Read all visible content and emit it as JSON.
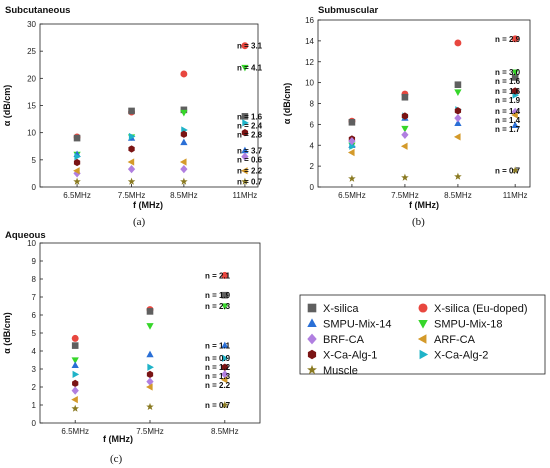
{
  "series_styles": [
    {
      "key": "xsilica",
      "name": "X-silica",
      "color": "#5f5f5f",
      "marker": "square"
    },
    {
      "key": "xsilica_eu",
      "name": "X-silica (Eu-doped)",
      "color": "#e8473f",
      "marker": "circle"
    },
    {
      "key": "smpu14",
      "name": "SMPU-Mix-14",
      "color": "#2a6fd6",
      "marker": "triangle-up"
    },
    {
      "key": "smpu18",
      "name": "SMPU-Mix-18",
      "color": "#36d62a",
      "marker": "triangle-down"
    },
    {
      "key": "brfca",
      "name": "BRF-CA",
      "color": "#b07fe0",
      "marker": "diamond"
    },
    {
      "key": "arfca",
      "name": "ARF-CA",
      "color": "#d49a2a",
      "marker": "triangle-left"
    },
    {
      "key": "xcaalg1",
      "name": "X-Ca-Alg-1",
      "color": "#7a1414",
      "marker": "hexagon"
    },
    {
      "key": "xcaalg2",
      "name": "X-Ca-Alg-2",
      "color": "#1fb3c8",
      "marker": "triangle-right"
    },
    {
      "key": "muscle",
      "name": "Muscle",
      "color": "#8a7a22",
      "marker": "star"
    }
  ],
  "chart_data": [
    {
      "id": "a",
      "type": "scatter",
      "title": "Subcutaneous",
      "xlabel": "f (MHz)",
      "ylabel": "α (dB/cm)",
      "caption": "(a)",
      "categories": [
        "6.5MHz",
        "7.5MHz",
        "8.5MHz",
        "11MHz"
      ],
      "ylim": [
        0,
        30
      ],
      "yticks": [
        0,
        5,
        10,
        15,
        20,
        25,
        30
      ],
      "series": [
        {
          "key": "xsilica_eu",
          "values": [
            9.2,
            13.8,
            20.8,
            26.0
          ]
        },
        {
          "key": "xsilica",
          "values": [
            9.0,
            14.0,
            14.2,
            13.0
          ]
        },
        {
          "key": "smpu18",
          "values": [
            6.0,
            9.2,
            13.7,
            22.0
          ]
        },
        {
          "key": "smpu14",
          "values": [
            6.0,
            9.0,
            8.2,
            6.7
          ]
        },
        {
          "key": "xcaalg2",
          "values": [
            5.6,
            9.3,
            10.5,
            11.8
          ]
        },
        {
          "key": "xcaalg1",
          "values": [
            4.5,
            7.0,
            9.7,
            10.0
          ]
        },
        {
          "key": "brfca",
          "values": [
            2.5,
            3.3,
            3.3,
            5.6
          ]
        },
        {
          "key": "arfca",
          "values": [
            3.0,
            4.6,
            4.6,
            3.0
          ]
        },
        {
          "key": "muscle",
          "values": [
            1.0,
            1.0,
            1.0,
            1.0
          ]
        }
      ],
      "n_labels": [
        {
          "text": "n = 3.1",
          "value": 26.0
        },
        {
          "text": "n = 4.1",
          "value": 22.0
        },
        {
          "text": "n = 1.6",
          "value": 13.0
        },
        {
          "text": "n = 2.4",
          "value": 11.8
        },
        {
          "text": "n = 2.8",
          "value": 10.0
        },
        {
          "text": "n = 3.7",
          "value": 6.7
        },
        {
          "text": "n = 0.6",
          "value": 5.6
        },
        {
          "text": "n = 2.2",
          "value": 3.0
        },
        {
          "text": "n = 0.7",
          "value": 1.0
        }
      ]
    },
    {
      "id": "b",
      "type": "scatter",
      "title": "Submuscular",
      "xlabel": "f (MHz)",
      "ylabel": "α (dB/cm)",
      "caption": "(b)",
      "categories": [
        "6.5MHz",
        "7.5MHz",
        "8.5MHz",
        "11MHz"
      ],
      "ylim": [
        0,
        16
      ],
      "yticks": [
        0,
        2,
        4,
        6,
        8,
        10,
        12,
        14,
        16
      ],
      "series": [
        {
          "key": "xsilica_eu",
          "values": [
            6.3,
            8.9,
            13.8,
            14.2
          ]
        },
        {
          "key": "xsilica",
          "values": [
            6.2,
            8.6,
            9.8,
            10.5
          ]
        },
        {
          "key": "smpu18",
          "values": [
            4.0,
            5.6,
            9.1,
            11.0
          ]
        },
        {
          "key": "smpu14",
          "values": [
            4.0,
            6.6,
            6.1,
            5.9
          ]
        },
        {
          "key": "xcaalg2",
          "values": [
            3.9,
            6.8,
            7.4,
            8.8
          ]
        },
        {
          "key": "xcaalg1",
          "values": [
            4.6,
            6.8,
            7.3,
            9.2
          ]
        },
        {
          "key": "brfca",
          "values": [
            4.4,
            5.0,
            6.6,
            7.2
          ]
        },
        {
          "key": "arfca",
          "values": [
            3.3,
            3.9,
            4.8,
            6.9
          ]
        },
        {
          "key": "muscle",
          "values": [
            0.8,
            0.9,
            1.0,
            1.6
          ]
        }
      ],
      "n_labels": [
        {
          "text": "n = 2.9",
          "value": 14.2
        },
        {
          "text": "n = 3.0",
          "value": 11.0
        },
        {
          "text": "n = 1.6",
          "value": 10.5
        },
        {
          "text": "n = 1.6",
          "value": 9.2
        },
        {
          "text": "n = 1.9",
          "value": 8.8
        },
        {
          "text": "n = 1.4",
          "value": 7.3
        },
        {
          "text": "n = 1.4",
          "value": 6.8
        },
        {
          "text": "n = 1.7",
          "value": 5.9
        },
        {
          "text": "n = 0.7",
          "value": 1.6
        }
      ]
    },
    {
      "id": "c",
      "type": "scatter",
      "title": "Aqueous",
      "xlabel": "f (MHz)",
      "ylabel": "α (dB/cm)",
      "caption": "(c)",
      "categories": [
        "6.5MHz",
        "7.5MHz",
        "8.5MHz"
      ],
      "ylim": [
        0,
        10
      ],
      "yticks": [
        0,
        1,
        2,
        3,
        4,
        5,
        6,
        7,
        8,
        9,
        10
      ],
      "series": [
        {
          "key": "xsilica_eu",
          "values": [
            4.7,
            6.3,
            8.2
          ]
        },
        {
          "key": "xsilica",
          "values": [
            4.3,
            6.2,
            7.1
          ]
        },
        {
          "key": "smpu18",
          "values": [
            3.5,
            5.4,
            6.5
          ]
        },
        {
          "key": "smpu14",
          "values": [
            3.2,
            3.8,
            4.3
          ]
        },
        {
          "key": "xcaalg2",
          "values": [
            2.7,
            3.1,
            3.6
          ]
        },
        {
          "key": "xcaalg1",
          "values": [
            2.2,
            2.7,
            3.1
          ]
        },
        {
          "key": "brfca",
          "values": [
            1.8,
            2.3,
            2.7
          ]
        },
        {
          "key": "arfca",
          "values": [
            1.3,
            2.0,
            2.4
          ]
        },
        {
          "key": "muscle",
          "values": [
            0.8,
            0.9,
            1.0
          ]
        }
      ],
      "n_labels": [
        {
          "text": "n = 2.1",
          "value": 8.2
        },
        {
          "text": "n = 1.9",
          "value": 7.1
        },
        {
          "text": "n = 2.3",
          "value": 6.5
        },
        {
          "text": "n = 1.1",
          "value": 4.3
        },
        {
          "text": "n = 0.9",
          "value": 3.6
        },
        {
          "text": "n = 1.2",
          "value": 3.1
        },
        {
          "text": "n = 1.3",
          "value": 2.7
        },
        {
          "text": "n = 2.2",
          "value": 2.4
        },
        {
          "text": "n = 0.7",
          "value": 1.0
        }
      ]
    }
  ]
}
